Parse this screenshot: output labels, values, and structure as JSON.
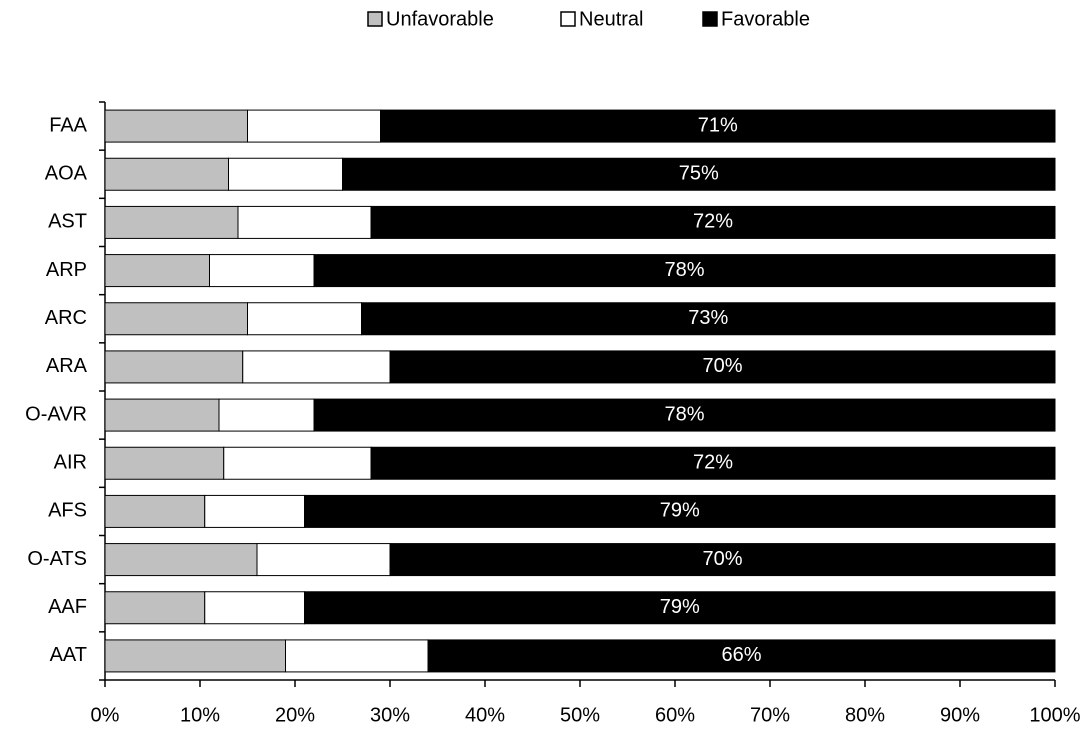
{
  "chart_data": {
    "type": "stacked_barh",
    "categories": [
      "FAA",
      "AOA",
      "AST",
      "ARP",
      "ARC",
      "ARA",
      "O-AVR",
      "AIR",
      "AFS",
      "O-ATS",
      "AAF",
      "AAT"
    ],
    "series": [
      {
        "name": "Unfavorable",
        "color": "#c0c0c0",
        "values": [
          15,
          13,
          14,
          11,
          15,
          14.5,
          12,
          12.5,
          10.5,
          16,
          10.5,
          19
        ]
      },
      {
        "name": "Neutral",
        "color": "#ffffff",
        "values": [
          14,
          12,
          14,
          11,
          12,
          15.5,
          10,
          15.5,
          10.5,
          14,
          10.5,
          15
        ]
      },
      {
        "name": "Favorable",
        "color": "#000000",
        "values": [
          71,
          75,
          72,
          78,
          73,
          70,
          78,
          72,
          79,
          70,
          79,
          66
        ],
        "value_labels": [
          "71%",
          "75%",
          "72%",
          "78%",
          "73%",
          "70%",
          "78%",
          "72%",
          "79%",
          "70%",
          "79%",
          "66%"
        ]
      }
    ],
    "xlim": [
      0,
      100
    ],
    "xticks": [
      {
        "value": 0,
        "label": "0%"
      },
      {
        "value": 10,
        "label": "10%"
      },
      {
        "value": 20,
        "label": "20%"
      },
      {
        "value": 30,
        "label": "30%"
      },
      {
        "value": 40,
        "label": "40%"
      },
      {
        "value": 50,
        "label": "50%"
      },
      {
        "value": 60,
        "label": "60%"
      },
      {
        "value": 70,
        "label": "70%"
      },
      {
        "value": 80,
        "label": "80%"
      },
      {
        "value": 90,
        "label": "90%"
      },
      {
        "value": 100,
        "label": "100%"
      }
    ],
    "legend": "top"
  }
}
